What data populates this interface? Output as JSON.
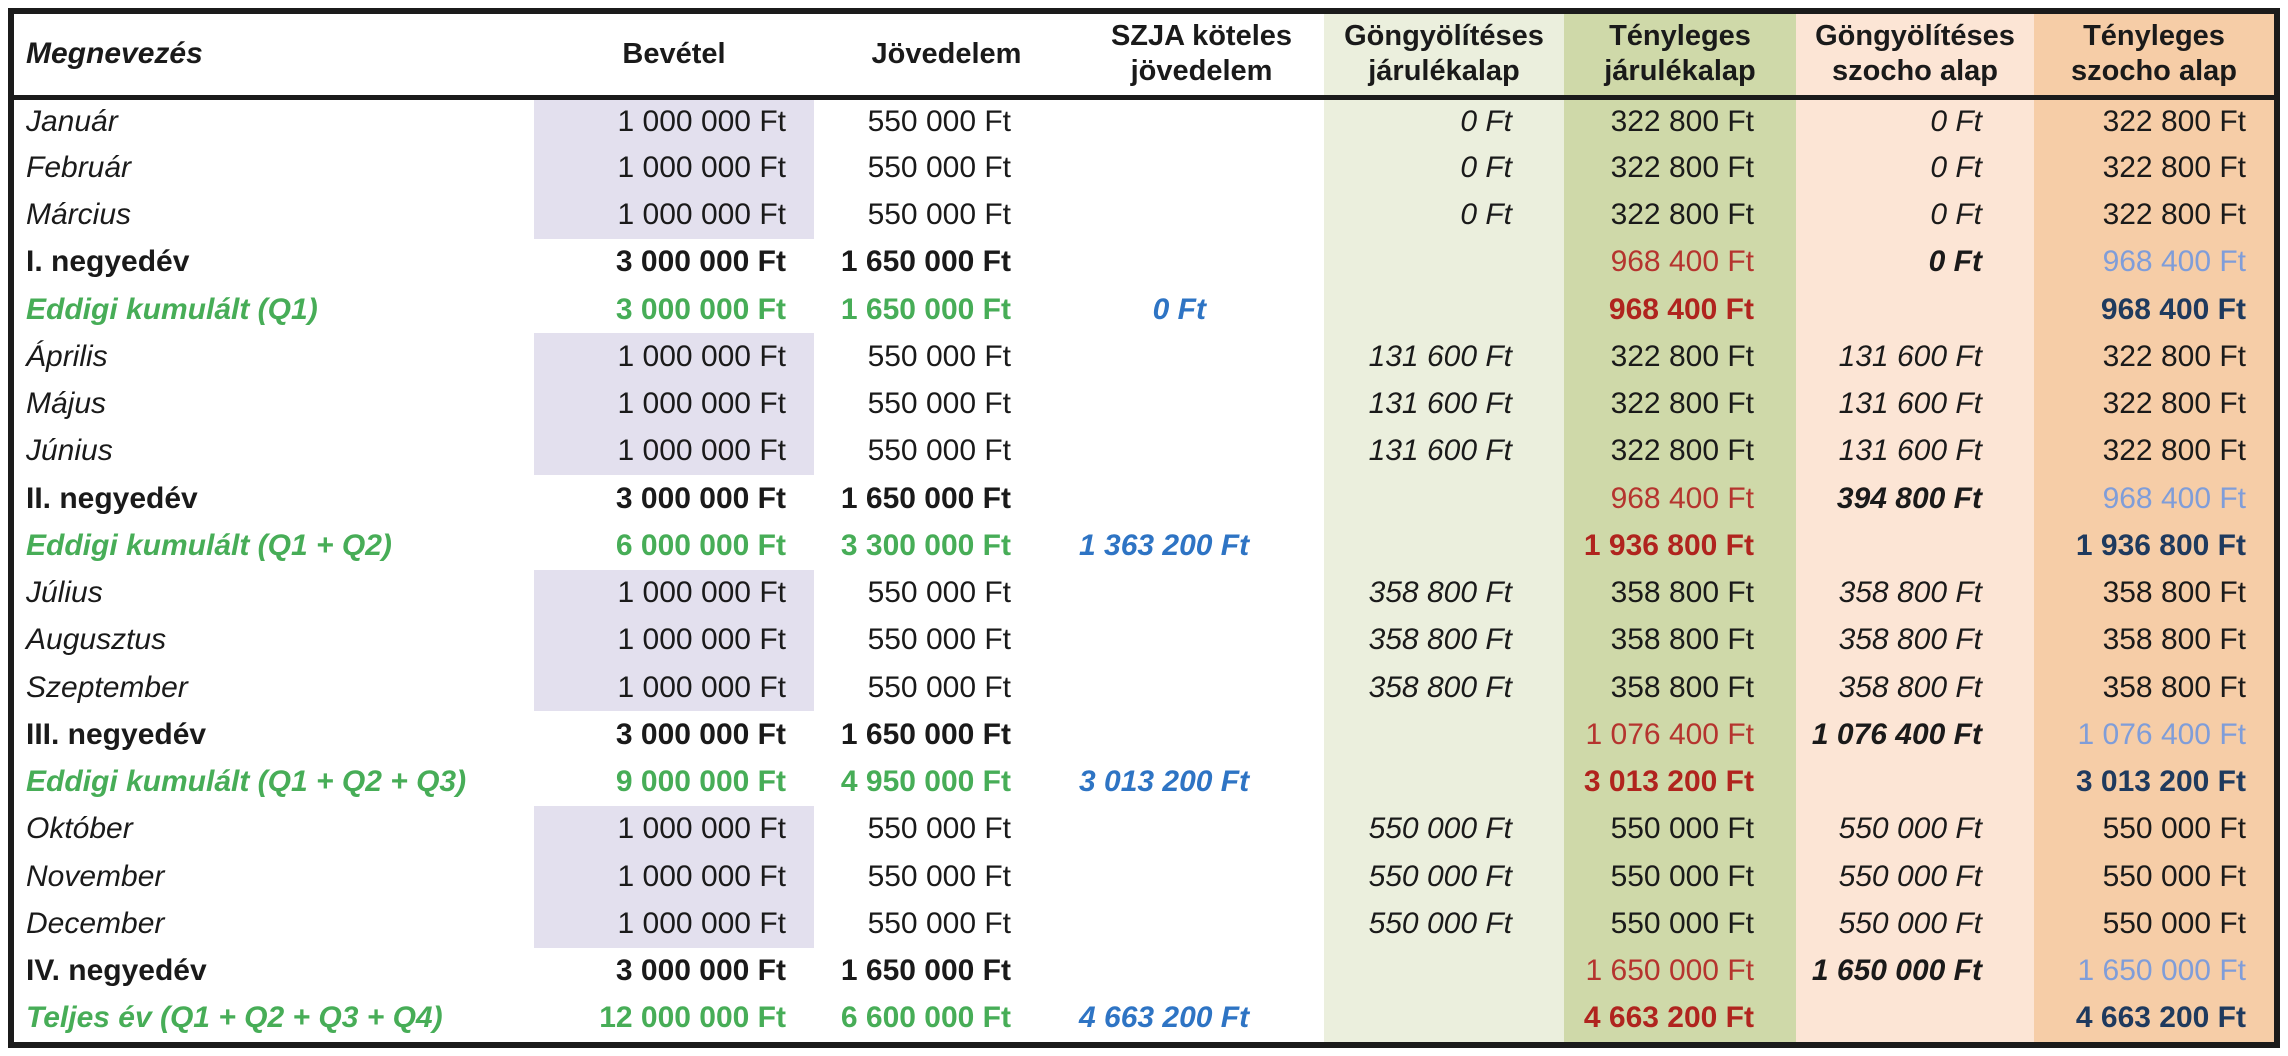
{
  "colors": {
    "border_color": "#1b1b1b",
    "lavender_bg": "#e3e0ee",
    "light_green_bg": "#ebefdd",
    "green_bg": "#cfd9a9",
    "light_peach_bg": "#fce5d5",
    "peach_bg": "#f6cda7",
    "green_text": "#47ad57",
    "blue_text": "#2e74c4",
    "light_blue_text": "#7f9dd9",
    "navy_text": "#1f3a5e",
    "red_text": "#b5342e",
    "dark_red_text": "#b0241e"
  },
  "table": {
    "columns": [
      {
        "label": "Megnevezés"
      },
      {
        "label": "Bevétel"
      },
      {
        "label": "Jövedelem"
      },
      {
        "label": "SZJA köteles jövedelem"
      },
      {
        "label": "Göngyölítéses járulékalap"
      },
      {
        "label": "Tényleges járulékalap"
      },
      {
        "label": "Göngyölítéses szocho alap"
      },
      {
        "label": "Tényleges szocho alap"
      }
    ],
    "rows": [
      {
        "type": "month",
        "cells": [
          "Január",
          "1 000 000 Ft",
          "550 000 Ft",
          "",
          "0 Ft",
          "322 800 Ft",
          "0 Ft",
          "322 800 Ft"
        ]
      },
      {
        "type": "month",
        "cells": [
          "Február",
          "1 000 000 Ft",
          "550 000 Ft",
          "",
          "0 Ft",
          "322 800 Ft",
          "0 Ft",
          "322 800 Ft"
        ]
      },
      {
        "type": "month",
        "cells": [
          "Március",
          "1 000 000 Ft",
          "550 000 Ft",
          "",
          "0 Ft",
          "322 800 Ft",
          "0 Ft",
          "322 800 Ft"
        ]
      },
      {
        "type": "quarter",
        "cells": [
          "I. negyedév",
          "3 000 000 Ft",
          "1 650 000 Ft",
          "",
          "",
          "968 400 Ft",
          "0 Ft",
          "968 400 Ft"
        ]
      },
      {
        "type": "cumulative",
        "cells": [
          "Eddigi kumulált (Q1)",
          "3 000 000 Ft",
          "1 650 000 Ft",
          "0 Ft",
          "",
          "968 400 Ft",
          "",
          "968 400 Ft"
        ]
      },
      {
        "type": "month",
        "cells": [
          "Április",
          "1 000 000 Ft",
          "550 000 Ft",
          "",
          "131 600 Ft",
          "322 800 Ft",
          "131 600 Ft",
          "322 800 Ft"
        ]
      },
      {
        "type": "month",
        "cells": [
          "Május",
          "1 000 000 Ft",
          "550 000 Ft",
          "",
          "131 600 Ft",
          "322 800 Ft",
          "131 600 Ft",
          "322 800 Ft"
        ]
      },
      {
        "type": "month",
        "cells": [
          "Június",
          "1 000 000 Ft",
          "550 000 Ft",
          "",
          "131 600 Ft",
          "322 800 Ft",
          "131 600 Ft",
          "322 800 Ft"
        ]
      },
      {
        "type": "quarter",
        "cells": [
          "II. negyedév",
          "3 000 000 Ft",
          "1 650 000 Ft",
          "",
          "",
          "968 400 Ft",
          "394 800 Ft",
          "968 400 Ft"
        ]
      },
      {
        "type": "cumulative",
        "cells": [
          "Eddigi kumulált (Q1 + Q2)",
          "6 000 000 Ft",
          "3 300 000 Ft",
          "1 363 200 Ft",
          "",
          "1 936 800 Ft",
          "",
          "1 936 800 Ft"
        ]
      },
      {
        "type": "month",
        "cells": [
          "Július",
          "1 000 000 Ft",
          "550 000 Ft",
          "",
          "358 800 Ft",
          "358 800 Ft",
          "358 800 Ft",
          "358 800 Ft"
        ]
      },
      {
        "type": "month",
        "cells": [
          "Augusztus",
          "1 000 000 Ft",
          "550 000 Ft",
          "",
          "358 800 Ft",
          "358 800 Ft",
          "358 800 Ft",
          "358 800 Ft"
        ]
      },
      {
        "type": "month",
        "cells": [
          "Szeptember",
          "1 000 000 Ft",
          "550 000 Ft",
          "",
          "358 800 Ft",
          "358 800 Ft",
          "358 800 Ft",
          "358 800 Ft"
        ]
      },
      {
        "type": "quarter",
        "cells": [
          "III. negyedév",
          "3 000 000 Ft",
          "1 650 000 Ft",
          "",
          "",
          "1 076 400 Ft",
          "1 076 400 Ft",
          "1 076 400 Ft"
        ]
      },
      {
        "type": "cumulative",
        "cells": [
          "Eddigi kumulált (Q1 + Q2 + Q3)",
          "9 000 000 Ft",
          "4 950 000 Ft",
          "3 013 200 Ft",
          "",
          "3 013 200 Ft",
          "",
          "3 013 200 Ft"
        ]
      },
      {
        "type": "month",
        "cells": [
          "Október",
          "1 000 000 Ft",
          "550 000 Ft",
          "",
          "550 000 Ft",
          "550 000 Ft",
          "550 000 Ft",
          "550 000 Ft"
        ]
      },
      {
        "type": "month",
        "cells": [
          "November",
          "1 000 000 Ft",
          "550 000 Ft",
          "",
          "550 000 Ft",
          "550 000 Ft",
          "550 000 Ft",
          "550 000 Ft"
        ]
      },
      {
        "type": "month",
        "cells": [
          "December",
          "1 000 000 Ft",
          "550 000 Ft",
          "",
          "550 000 Ft",
          "550 000 Ft",
          "550 000 Ft",
          "550 000 Ft"
        ]
      },
      {
        "type": "quarter",
        "cells": [
          "IV. negyedév",
          "3 000 000 Ft",
          "1 650 000 Ft",
          "",
          "",
          "1 650 000 Ft",
          "1 650 000 Ft",
          "1 650 000 Ft"
        ]
      },
      {
        "type": "cumulative",
        "cells": [
          "Teljes év (Q1 + Q2 + Q3 + Q4)",
          "12 000 000 Ft",
          "6 600 000 Ft",
          "4 663 200 Ft",
          "",
          "4 663 200 Ft",
          "",
          "4 663 200 Ft"
        ]
      }
    ]
  }
}
